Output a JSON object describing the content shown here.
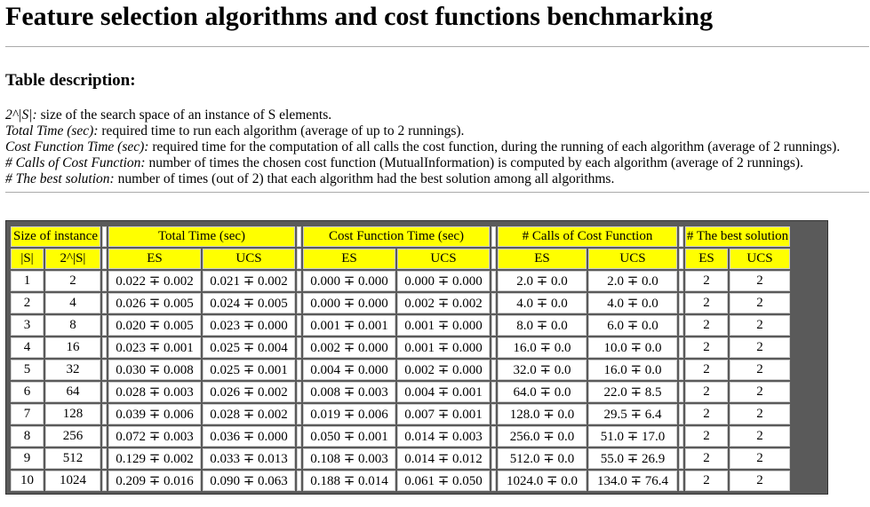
{
  "title": "Feature selection algorithms and cost functions benchmarking",
  "description": {
    "heading": "Table description:",
    "lines": [
      {
        "term": "2^|S|:",
        "text": " size of the search space of an instance of S elements."
      },
      {
        "term": "Total Time (sec):",
        "text": " required time to run each algorithm (average of up to 2 runnings)."
      },
      {
        "term": "Cost Function Time (sec):",
        "text": " required time for the computation of all calls the cost function, during the running of each algorithm (average of 2 runnings)."
      },
      {
        "term": "# Calls of Cost Function:",
        "text": " number of times the chosen cost function (MutualInformation) is computed by each algorithm (average of 2 runnings)."
      },
      {
        "term": "# The best solution:",
        "text": " number of times (out of 2) that each algorithm had the best solution among all algorithms."
      }
    ]
  },
  "table": {
    "group_headers": [
      "Size of instance",
      "Total Time (sec)",
      "Cost Function Time (sec)",
      "# Calls of Cost Function",
      "# The best solution"
    ],
    "sub_headers": [
      "|S|",
      "2^|S|",
      "ES",
      "UCS",
      "ES",
      "UCS",
      "ES",
      "UCS",
      "ES",
      "UCS"
    ],
    "rows": [
      [
        "1",
        "2",
        "0.022 ∓ 0.002",
        "0.021 ∓ 0.002",
        "0.000 ∓ 0.000",
        "0.000 ∓ 0.000",
        "2.0 ∓  0.0",
        "2.0 ∓  0.0",
        "2",
        "2"
      ],
      [
        "2",
        "4",
        "0.026 ∓ 0.005",
        "0.024 ∓ 0.005",
        "0.000 ∓ 0.000",
        "0.002 ∓ 0.002",
        "4.0 ∓  0.0",
        "4.0 ∓  0.0",
        "2",
        "2"
      ],
      [
        "3",
        "8",
        "0.020 ∓ 0.005",
        "0.023 ∓ 0.000",
        "0.001 ∓ 0.001",
        "0.001 ∓ 0.000",
        "8.0 ∓  0.0",
        "6.0 ∓  0.0",
        "2",
        "2"
      ],
      [
        "4",
        "16",
        "0.023 ∓ 0.001",
        "0.025 ∓ 0.004",
        "0.002 ∓ 0.000",
        "0.001 ∓ 0.000",
        "16.0 ∓  0.0",
        "10.0 ∓  0.0",
        "2",
        "2"
      ],
      [
        "5",
        "32",
        "0.030 ∓ 0.008",
        "0.025 ∓ 0.001",
        "0.004 ∓ 0.000",
        "0.002 ∓ 0.000",
        "32.0 ∓  0.0",
        "16.0 ∓  0.0",
        "2",
        "2"
      ],
      [
        "6",
        "64",
        "0.028 ∓ 0.003",
        "0.026 ∓ 0.002",
        "0.008 ∓ 0.003",
        "0.004 ∓ 0.001",
        "64.0 ∓  0.0",
        "22.0 ∓  8.5",
        "2",
        "2"
      ],
      [
        "7",
        "128",
        "0.039 ∓ 0.006",
        "0.028 ∓ 0.002",
        "0.019 ∓ 0.006",
        "0.007 ∓ 0.001",
        "128.0 ∓  0.0",
        "29.5 ∓  6.4",
        "2",
        "2"
      ],
      [
        "8",
        "256",
        "0.072 ∓ 0.003",
        "0.036 ∓ 0.000",
        "0.050 ∓ 0.001",
        "0.014 ∓ 0.003",
        "256.0 ∓  0.0",
        "51.0 ∓  17.0",
        "2",
        "2"
      ],
      [
        "9",
        "512",
        "0.129 ∓ 0.002",
        "0.033 ∓ 0.013",
        "0.108 ∓ 0.003",
        "0.014 ∓ 0.012",
        "512.0 ∓  0.0",
        "55.0 ∓  26.9",
        "2",
        "2"
      ],
      [
        "10",
        "1024",
        "0.209 ∓ 0.016",
        "0.090 ∓ 0.063",
        "0.188 ∓ 0.014",
        "0.061 ∓ 0.050",
        "1024.0 ∓  0.0",
        "134.0 ∓  76.4",
        "2",
        "2"
      ]
    ]
  }
}
